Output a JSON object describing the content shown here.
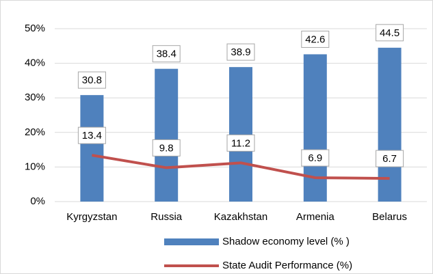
{
  "chart_data": {
    "type": "combo",
    "categories": [
      "Kyrgyzstan",
      "Russia",
      "Kazakhstan",
      "Armenia",
      "Belarus"
    ],
    "series": [
      {
        "name": "Shadow economy level (% )",
        "type": "bar",
        "color": "#4f81bd",
        "values": [
          30.8,
          38.4,
          38.9,
          42.6,
          44.5
        ]
      },
      {
        "name": "State Audit Performance (%)",
        "type": "line",
        "color": "#c0504d",
        "values": [
          13.4,
          9.8,
          11.2,
          6.9,
          6.7
        ]
      }
    ],
    "ylim": [
      0,
      50
    ],
    "yticks": [
      {
        "value": 0,
        "label": "0%"
      },
      {
        "value": 10,
        "label": "10%"
      },
      {
        "value": 20,
        "label": "20%"
      },
      {
        "value": 30,
        "label": "30%"
      },
      {
        "value": 40,
        "label": "40%"
      },
      {
        "value": 50,
        "label": "50%"
      }
    ],
    "grid": true,
    "legend": "bottom"
  }
}
